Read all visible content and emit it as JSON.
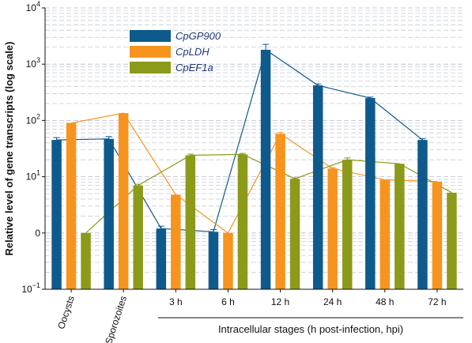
{
  "chart_data": {
    "type": "bar",
    "ylabel": "Relative level of gene transcripts (log scale)",
    "yscale": "log",
    "ylim_exponent": [
      -1,
      4
    ],
    "y_ticks": [
      {
        "exp": 4,
        "base": "10",
        "sup": "4"
      },
      {
        "exp": 3,
        "base": "10",
        "sup": "3"
      },
      {
        "exp": 2,
        "base": "10",
        "sup": "2"
      },
      {
        "exp": 1,
        "base": "10",
        "sup": "1"
      },
      {
        "exp": 0,
        "base": "0",
        "sup": ""
      },
      {
        "exp": -1,
        "base": "10",
        "sup": "−1"
      }
    ],
    "categories": [
      "Oocysts",
      "Sporozoites",
      "3 h",
      "6 h",
      "12 h",
      "24 h",
      "48 h",
      "72 h"
    ],
    "group_label": "Intracellular stages (h post-infection, hpi)",
    "grid": "dashed-minor",
    "legend_position": "top-left",
    "series": [
      {
        "name": "CpGP900",
        "color": "#0f5a8c",
        "values": [
          45,
          47,
          1.2,
          1.05,
          1800,
          420,
          250,
          45
        ],
        "errors": [
          1.1,
          1.1,
          1.1,
          1.1,
          1.25,
          1.06,
          1.04,
          1.05
        ]
      },
      {
        "name": "CpLDH",
        "color": "#f7941d",
        "values": [
          90,
          135,
          4.8,
          1.0,
          58,
          14,
          8.8,
          8.2
        ],
        "errors": [
          1.03,
          1.03,
          1.03,
          1.03,
          1.05,
          1.04,
          1.03,
          1.03
        ]
      },
      {
        "name": "CpEF1a",
        "color": "#8c9a1a",
        "values": [
          1.0,
          7.0,
          24,
          25,
          9.2,
          20,
          17,
          5.2
        ],
        "errors": [
          1.03,
          1.05,
          1.05,
          1.04,
          1.04,
          1.08,
          1.03,
          1.03
        ]
      }
    ]
  }
}
